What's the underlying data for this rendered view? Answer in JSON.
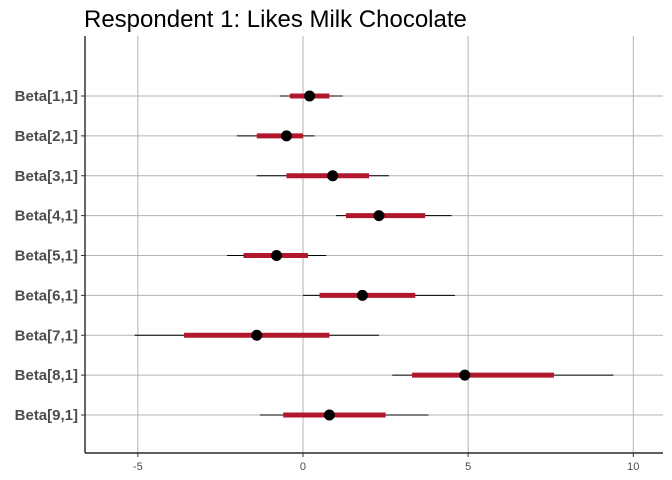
{
  "chart_data": {
    "type": "interval",
    "title": "Respondent 1: Likes Milk Chocolate",
    "xlabel": "",
    "ylabel": "",
    "xlim": [
      -6.6,
      10.9
    ],
    "x_ticks": [
      -5,
      0,
      5,
      10
    ],
    "grid": true,
    "colors": {
      "inner_interval": "#b2182b",
      "outer_interval": "#000000",
      "point": "#000000",
      "grid": "#b3b3b3"
    },
    "parameters": [
      {
        "label": "Beta[1,1]",
        "estimate": 0.2,
        "inner": [
          -0.4,
          0.8
        ],
        "outer": [
          -0.7,
          1.2
        ]
      },
      {
        "label": "Beta[2,1]",
        "estimate": -0.5,
        "inner": [
          -1.4,
          0.0
        ],
        "outer": [
          -2.0,
          0.35
        ]
      },
      {
        "label": "Beta[3,1]",
        "estimate": 0.9,
        "inner": [
          -0.5,
          2.0
        ],
        "outer": [
          -1.4,
          2.6
        ]
      },
      {
        "label": "Beta[4,1]",
        "estimate": 2.3,
        "inner": [
          1.3,
          3.7
        ],
        "outer": [
          1.0,
          4.5
        ]
      },
      {
        "label": "Beta[5,1]",
        "estimate": -0.8,
        "inner": [
          -1.8,
          0.15
        ],
        "outer": [
          -2.3,
          0.7
        ]
      },
      {
        "label": "Beta[6,1]",
        "estimate": 1.8,
        "inner": [
          0.5,
          3.4
        ],
        "outer": [
          0.0,
          4.6
        ]
      },
      {
        "label": "Beta[7,1]",
        "estimate": -1.4,
        "inner": [
          -3.6,
          0.8
        ],
        "outer": [
          -5.1,
          2.3
        ]
      },
      {
        "label": "Beta[8,1]",
        "estimate": 4.9,
        "inner": [
          3.3,
          7.6
        ],
        "outer": [
          2.7,
          9.4
        ]
      },
      {
        "label": "Beta[9,1]",
        "estimate": 0.8,
        "inner": [
          -0.6,
          2.5
        ],
        "outer": [
          -1.3,
          3.8
        ]
      }
    ]
  }
}
